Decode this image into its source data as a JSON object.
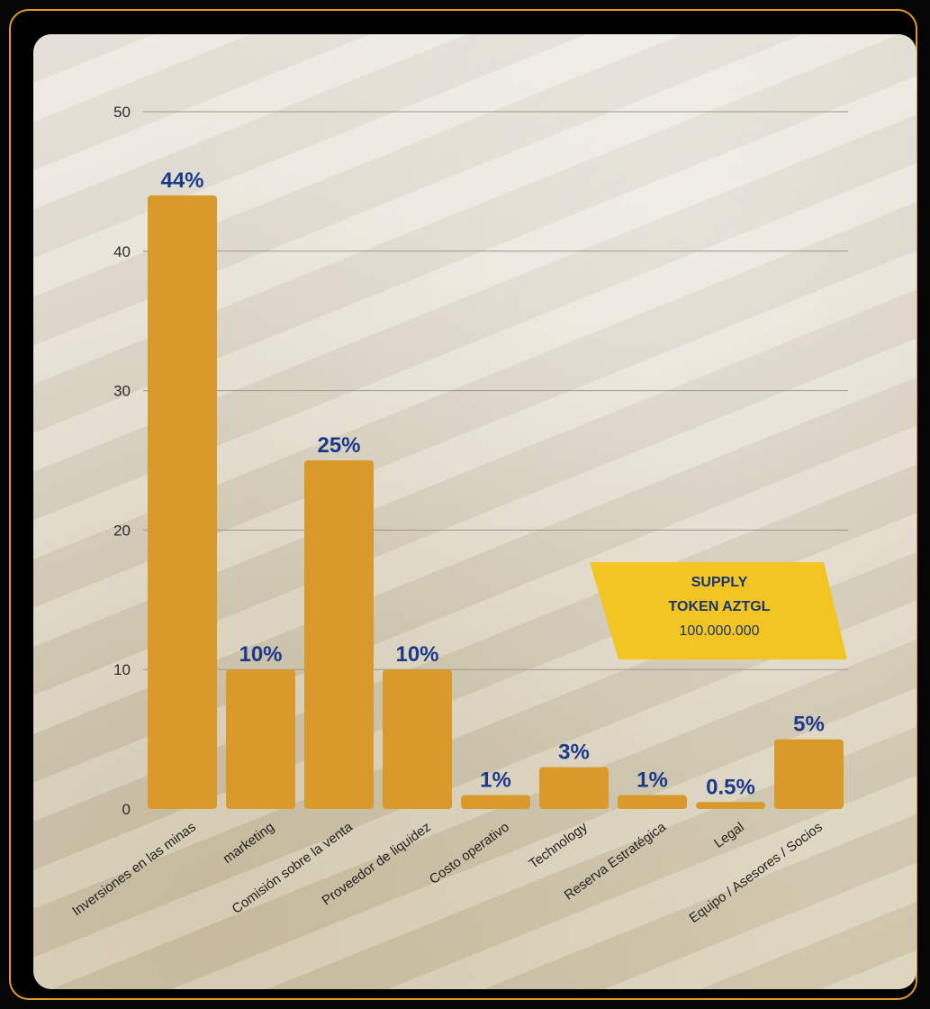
{
  "chart_data": {
    "type": "bar",
    "categories": [
      "Inversiones en las minas",
      "marketing",
      "Comisión sobre la venta",
      "Proveedor de liquidez",
      "Costo operativo",
      "Technology",
      "Reserva Estratégica",
      "Legal",
      "Equipo / Asesores / Socios"
    ],
    "values": [
      44,
      10,
      25,
      10,
      1,
      3,
      1,
      0.5,
      5
    ],
    "data_labels": [
      "44%",
      "10%",
      "25%",
      "10%",
      "1%",
      "3%",
      "1%",
      "0.5%",
      "5%"
    ],
    "title": "",
    "xlabel": "",
    "ylabel": "",
    "ylim": [
      0,
      50
    ],
    "yticks": [
      0,
      10,
      20,
      30,
      40,
      50
    ],
    "grid": true,
    "bar_color": "#d99a2b",
    "label_color": "#1b3a8c"
  },
  "badge": {
    "line1": "SUPPLY",
    "line2": "TOKEN AZTGL",
    "line3": "100.000.000",
    "color": "#f2c523"
  }
}
